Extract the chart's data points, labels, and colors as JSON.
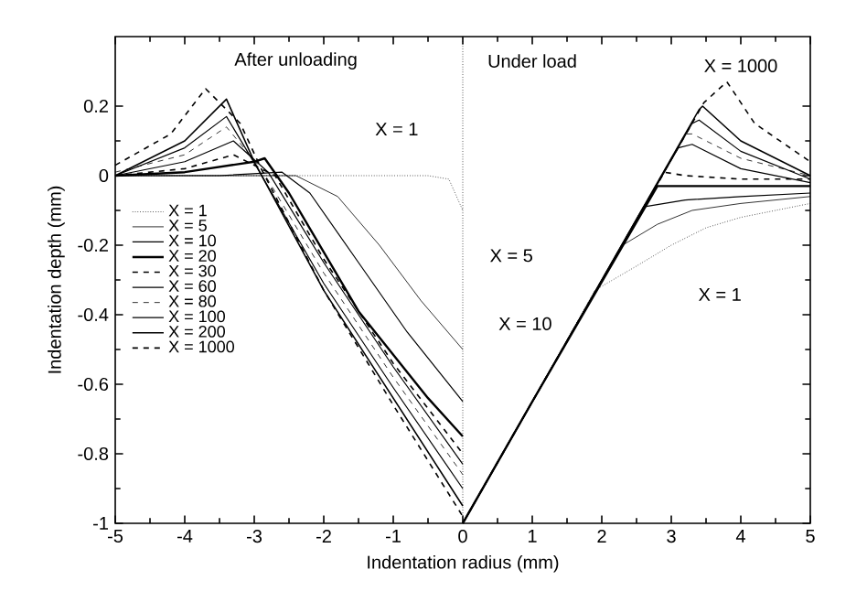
{
  "chart_data": {
    "type": "line",
    "xlabel": "Indentation radius (mm)",
    "ylabel": "Indentation depth (mm)",
    "xlim": [
      -5,
      5
    ],
    "ylim": [
      -1,
      0.4
    ],
    "xticks": [
      -5,
      -4,
      -3,
      -2,
      -1,
      0,
      1,
      2,
      3,
      4,
      5
    ],
    "yticks": [
      -1,
      -0.8,
      -0.6,
      -0.4,
      -0.2,
      0,
      0.2
    ],
    "legend": "left",
    "grid": false,
    "marker": "none",
    "ref_lines": [
      {
        "axis": "x",
        "value": 0,
        "line_style": "dotted",
        "color": "#000000"
      }
    ],
    "annotations": [
      "After unloading",
      "Under load",
      "X = 1000",
      "X = 1",
      "X = 5",
      "X = 10",
      "X = 1"
    ],
    "series": [
      {
        "name": "X = 1",
        "color": "#000000",
        "line_style": "dotted",
        "x": [
          -5,
          -0.5,
          -0.2,
          0
        ],
        "values": [
          0,
          0,
          -0.01,
          -0.1
        ]
      },
      {
        "name": "X = 5",
        "color": "#000000",
        "line_style": "solid",
        "x": [
          -5,
          -3,
          -2.4,
          -1.8,
          -1.2,
          -0.6,
          0
        ],
        "values": [
          0,
          0,
          0,
          -0.06,
          -0.2,
          -0.36,
          -0.5
        ]
      },
      {
        "name": "X = 10",
        "color": "#000000",
        "line_style": "solid",
        "x": [
          -5,
          -3.5,
          -2.6,
          -2.2,
          -1.5,
          -0.8,
          0
        ],
        "values": [
          0,
          0,
          0.01,
          -0.05,
          -0.25,
          -0.45,
          -0.65
        ]
      },
      {
        "name": "X = 20",
        "color": "#000000",
        "line_style": "solid",
        "x": [
          -5,
          -4,
          -3,
          -2.85,
          -2.5,
          -1.5,
          -0.5,
          0
        ],
        "values": [
          0,
          0.01,
          0.04,
          0.05,
          -0.05,
          -0.39,
          -0.64,
          -0.75
        ]
      },
      {
        "name": "X = 30",
        "color": "#000000",
        "line_style": "dashed",
        "x": [
          -5,
          -4,
          -3.3,
          -2.7,
          -2,
          -1,
          0
        ],
        "values": [
          0,
          0.02,
          0.06,
          0,
          -0.24,
          -0.54,
          -0.8
        ]
      },
      {
        "name": "X = 60",
        "color": "#000000",
        "line_style": "solid",
        "x": [
          -5,
          -4,
          -3.3,
          -2.8,
          -2,
          -1,
          0
        ],
        "values": [
          0,
          0.04,
          0.1,
          0.01,
          -0.25,
          -0.55,
          -0.83
        ]
      },
      {
        "name": "X = 80",
        "color": "#000000",
        "line_style": "dashed",
        "x": [
          -5,
          -4,
          -3.4,
          -2.9,
          -2,
          -1,
          0
        ],
        "values": [
          0.01,
          0.06,
          0.14,
          0.02,
          -0.28,
          -0.58,
          -0.86
        ]
      },
      {
        "name": "X = 100",
        "color": "#000000",
        "line_style": "solid",
        "x": [
          -5,
          -4,
          -3.4,
          -2.95,
          -2,
          -1,
          0
        ],
        "values": [
          0,
          0.08,
          0.17,
          0.02,
          -0.31,
          -0.61,
          -0.9
        ]
      },
      {
        "name": "X = 200",
        "color": "#000000",
        "line_style": "solid",
        "x": [
          -5,
          -4,
          -3.4,
          -3,
          -2,
          -1,
          0
        ],
        "values": [
          0,
          0.1,
          0.22,
          0.04,
          -0.33,
          -0.64,
          -0.95
        ]
      },
      {
        "name": "X = 1000",
        "color": "#000000",
        "line_style": "dashed",
        "x": [
          -5,
          -4.2,
          -3.7,
          -3.2,
          -2.9,
          -2,
          -1,
          0
        ],
        "values": [
          0.03,
          0.12,
          0.25,
          0.15,
          0.02,
          -0.33,
          -0.66,
          -0.98
        ]
      },
      {
        "color": "#000000",
        "line_style": "dotted",
        "x": [
          0,
          1,
          1.9,
          2.5,
          3,
          3.5,
          4,
          4.5,
          5
        ],
        "values": [
          -1,
          -0.65,
          -0.33,
          -0.26,
          -0.2,
          -0.15,
          -0.12,
          -0.1,
          -0.08
        ]
      },
      {
        "color": "#000000",
        "line_style": "solid",
        "x": [
          0,
          1,
          2.3,
          2.8,
          3.3,
          4,
          5
        ],
        "values": [
          -1,
          -0.65,
          -0.2,
          -0.14,
          -0.1,
          -0.08,
          -0.06
        ]
      },
      {
        "color": "#000000",
        "line_style": "solid",
        "x": [
          0,
          1,
          2.6,
          3.2,
          4,
          5
        ],
        "values": [
          -1,
          -0.65,
          -0.09,
          -0.07,
          -0.06,
          -0.05
        ]
      },
      {
        "color": "#000000",
        "line_style": "solid",
        "x": [
          0,
          1,
          2.8,
          3.5,
          5
        ],
        "values": [
          -1,
          -0.65,
          -0.03,
          -0.03,
          -0.03
        ]
      },
      {
        "color": "#000000",
        "line_style": "dashed",
        "x": [
          0,
          1,
          2.9,
          3.2,
          4,
          5
        ],
        "values": [
          -1,
          -0.65,
          0.01,
          0,
          -0.01,
          -0.01
        ]
      },
      {
        "color": "#000000",
        "line_style": "solid",
        "x": [
          0,
          1,
          3.1,
          3.3,
          4,
          5
        ],
        "values": [
          -1,
          -0.65,
          0.08,
          0.09,
          0.02,
          -0.02
        ]
      },
      {
        "color": "#000000",
        "line_style": "dashed",
        "x": [
          0,
          1,
          3.2,
          3.3,
          4,
          5
        ],
        "values": [
          -1,
          -0.65,
          0.12,
          0.12,
          0.05,
          0
        ]
      },
      {
        "color": "#000000",
        "line_style": "solid",
        "x": [
          0,
          1,
          3.3,
          3.4,
          4,
          5
        ],
        "values": [
          -1,
          -0.65,
          0.15,
          0.16,
          0.07,
          -0.01
        ]
      },
      {
        "color": "#000000",
        "line_style": "solid",
        "x": [
          0,
          1,
          3.4,
          3.45,
          4,
          5
        ],
        "values": [
          -1,
          -0.65,
          0.19,
          0.2,
          0.1,
          0
        ]
      },
      {
        "color": "#000000",
        "line_style": "dashed",
        "x": [
          0,
          1,
          3.47,
          3.8,
          4.2,
          5
        ],
        "values": [
          -1,
          -0.65,
          0.21,
          0.27,
          0.15,
          0.04
        ]
      }
    ]
  }
}
